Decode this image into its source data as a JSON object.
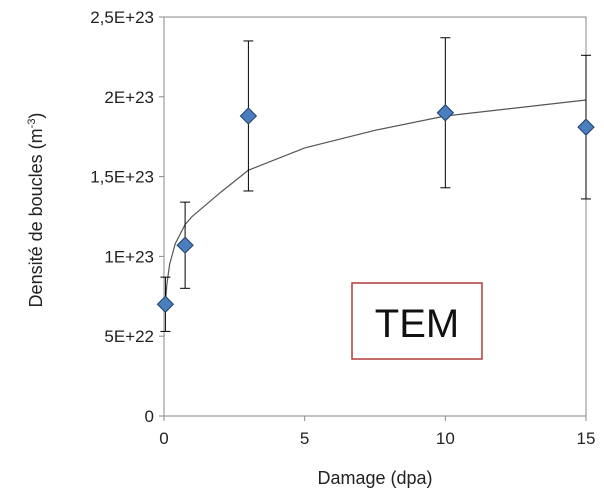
{
  "chart_data": {
    "type": "scatter",
    "xlabel": "Damage (dpa)",
    "ylabel_main": "Densité de boucles (m",
    "ylabel_sup": "-3",
    "ylabel_close": ")",
    "xlim": [
      0,
      15
    ],
    "ylim": [
      0,
      2.5e+23
    ],
    "x_ticks": [
      0,
      5,
      10,
      15
    ],
    "x_tick_labels": [
      "0",
      "5",
      "10",
      "15"
    ],
    "y_ticks": [
      0,
      5e+22,
      1e+23,
      1.5e+23,
      2e+23,
      2.5e+23
    ],
    "y_tick_labels": [
      "0",
      "5E+22",
      "1E+23",
      "1,5E+23",
      "2E+23",
      "2,5E+23"
    ],
    "grid": false,
    "series": [
      {
        "marker": "diamond",
        "color": "#4a7ebf",
        "points": [
          {
            "x": 0.05,
            "y": 7e+22,
            "err_low": 5.3e+22,
            "err_high": 8.7e+22
          },
          {
            "x": 0.75,
            "y": 1.07e+23,
            "err_low": 8e+22,
            "err_high": 1.34e+23
          },
          {
            "x": 3.0,
            "y": 1.88e+23,
            "err_low": 1.41e+23,
            "err_high": 2.35e+23
          },
          {
            "x": 10.0,
            "y": 1.9e+23,
            "err_low": 1.43e+23,
            "err_high": 2.37e+23
          },
          {
            "x": 15.0,
            "y": 1.81e+23,
            "err_low": 1.36e+23,
            "err_high": 2.26e+23
          }
        ]
      }
    ],
    "trendline": {
      "type": "logarithmic",
      "color": "#555555",
      "x_range": [
        0.05,
        15
      ],
      "samples": [
        [
          0.05,
          7e+22
        ],
        [
          0.1,
          8.2e+22
        ],
        [
          0.2,
          9.5e+22
        ],
        [
          0.4,
          1.08e+23
        ],
        [
          0.75,
          1.2e+23
        ],
        [
          1.0,
          1.25e+23
        ],
        [
          2.0,
          1.4e+23
        ],
        [
          3.0,
          1.54e+23
        ],
        [
          5.0,
          1.68e+23
        ],
        [
          7.5,
          1.79e+23
        ],
        [
          10.0,
          1.88e+23
        ],
        [
          12.5,
          1.93e+23
        ],
        [
          15.0,
          1.98e+23
        ]
      ]
    },
    "annotation": {
      "text": "TEM",
      "border_color": "#b23a3a"
    }
  }
}
